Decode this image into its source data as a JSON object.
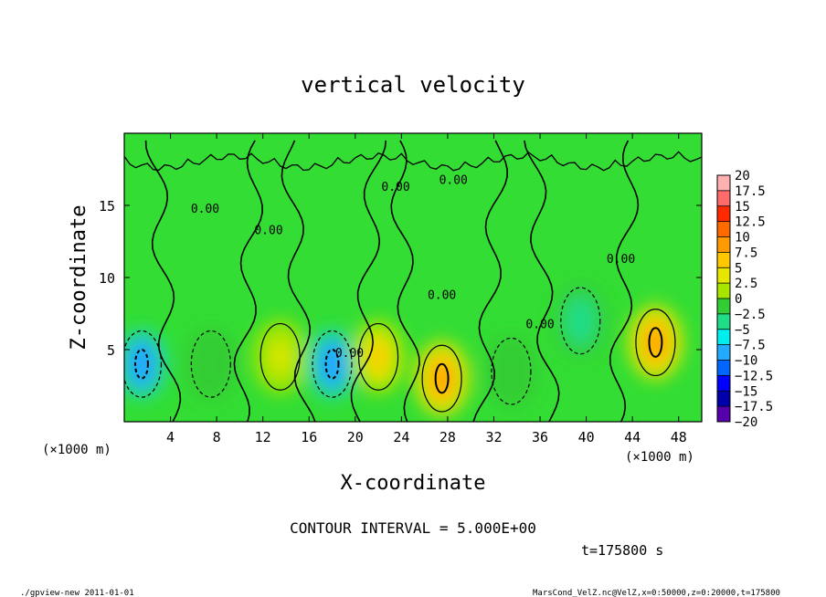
{
  "chart_data": {
    "type": "heatmap",
    "title": "vertical velocity",
    "xlabel": "X-coordinate",
    "ylabel": "Z-coordinate",
    "x_unit": "(×1000 m)",
    "y_unit": "(×1000 m)",
    "xlim": [
      0,
      50
    ],
    "ylim": [
      0,
      20
    ],
    "xticks": [
      4,
      8,
      12,
      16,
      20,
      24,
      28,
      32,
      36,
      40,
      44,
      48
    ],
    "yticks": [
      5,
      10,
      15
    ],
    "colorbar": {
      "levels": [
        20,
        17.5,
        15,
        12.5,
        10,
        7.5,
        5,
        2.5,
        0,
        -2.5,
        -5,
        -7.5,
        -10,
        -12.5,
        -15,
        -17.5,
        -20
      ],
      "labels": [
        "20",
        "17.5",
        "15",
        "12.5",
        "10",
        "7.5",
        "5",
        "2.5",
        "0",
        "−2.5",
        "−5",
        "−7.5",
        "−10",
        "−12.5",
        "−15",
        "−17.5",
        "−20"
      ],
      "colors": [
        "#ffb0b0",
        "#ff6a6a",
        "#ff2a00",
        "#ff6a00",
        "#ff9a00",
        "#ffc800",
        "#e6e600",
        "#a8e600",
        "#34cc34",
        "#22dd88",
        "#00eeee",
        "#22aaff",
        "#0066ff",
        "#0000ff",
        "#0000aa",
        "#5500aa"
      ]
    },
    "contour_labels": [
      "0.00",
      "0.00",
      "0.00",
      "0.00",
      "0.00",
      "0.00",
      "0.00",
      "0.00"
    ],
    "contour_interval_text": "CONTOUR INTERVAL = 5.000E+00",
    "time_text": "t=175800 s",
    "features": [
      {
        "x": 1.5,
        "z": 4.0,
        "value": -10
      },
      {
        "x": 7.5,
        "z": 4.0,
        "value": -2.5
      },
      {
        "x": 13.5,
        "z": 4.5,
        "value": 2.5
      },
      {
        "x": 18.0,
        "z": 4.0,
        "value": -10
      },
      {
        "x": 22.0,
        "z": 4.5,
        "value": 5
      },
      {
        "x": 27.5,
        "z": 3.0,
        "value": 7.5
      },
      {
        "x": 33.5,
        "z": 3.5,
        "value": -2.5
      },
      {
        "x": 39.5,
        "z": 7.0,
        "value": -5
      },
      {
        "x": 46.0,
        "z": 5.5,
        "value": 7.5
      }
    ]
  },
  "footer": {
    "left": "./gpview-new  2011-01-01",
    "right": "MarsCond_VelZ.nc@VelZ,x=0:50000,z=0:20000,t=175800"
  }
}
